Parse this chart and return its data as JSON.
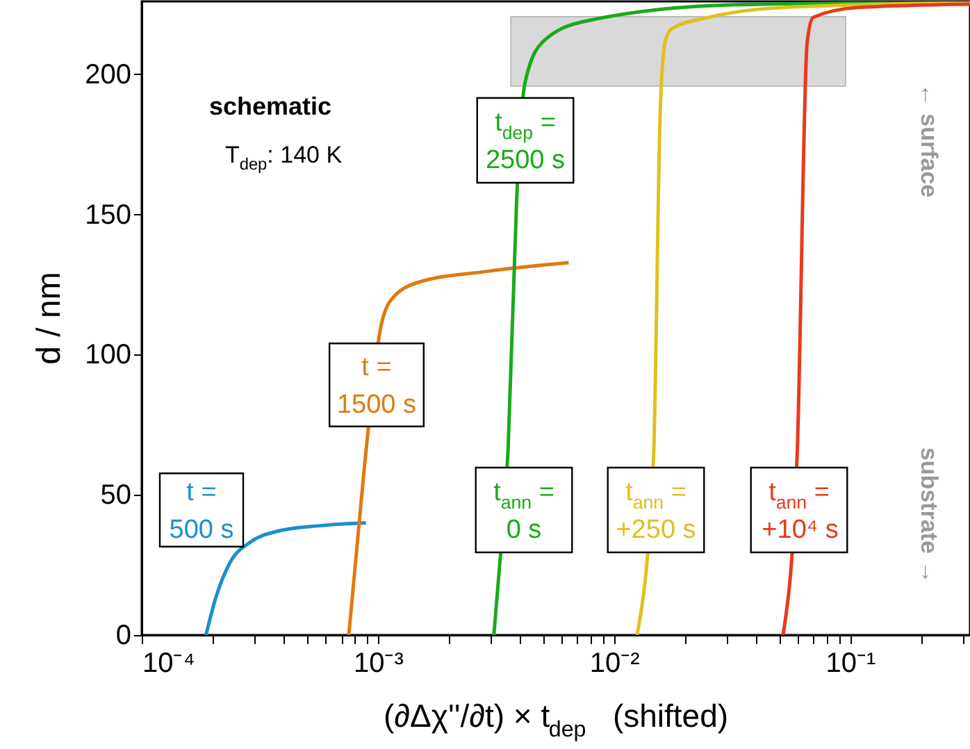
{
  "chart_data": {
    "type": "line",
    "xlabel": "(∂Δχ''/∂t) × t$_{dep}$   (shifted)",
    "ylabel": "d / nm",
    "log": "x",
    "grid": false,
    "marker": "none",
    "line_style": "solid",
    "xlim": [
      0.0001,
      0.322
    ],
    "ylim": [
      0,
      226
    ],
    "xticks": [
      {
        "value": 0.0001,
        "label": "10⁻⁴"
      },
      {
        "value": 0.0002,
        "label": null
      },
      {
        "value": 0.0003,
        "label": null
      },
      {
        "value": 0.0004,
        "label": null
      },
      {
        "value": 0.0005,
        "label": null
      },
      {
        "value": 0.0006,
        "label": null
      },
      {
        "value": 0.0007,
        "label": null
      },
      {
        "value": 0.0008,
        "label": null
      },
      {
        "value": 0.0009,
        "label": null
      },
      {
        "value": 0.001,
        "label": "10⁻³"
      },
      {
        "value": 0.002,
        "label": null
      },
      {
        "value": 0.003,
        "label": null
      },
      {
        "value": 0.004,
        "label": null
      },
      {
        "value": 0.005,
        "label": null
      },
      {
        "value": 0.006,
        "label": null
      },
      {
        "value": 0.007,
        "label": null
      },
      {
        "value": 0.008,
        "label": null
      },
      {
        "value": 0.009,
        "label": null
      },
      {
        "value": 0.01,
        "label": "10⁻²"
      },
      {
        "value": 0.02,
        "label": null
      },
      {
        "value": 0.03,
        "label": null
      },
      {
        "value": 0.04,
        "label": null
      },
      {
        "value": 0.05,
        "label": null
      },
      {
        "value": 0.06,
        "label": null
      },
      {
        "value": 0.07,
        "label": null
      },
      {
        "value": 0.08,
        "label": null
      },
      {
        "value": 0.09,
        "label": null
      },
      {
        "value": 0.1,
        "label": "10⁻¹"
      },
      {
        "value": 0.2,
        "label": null
      },
      {
        "value": 0.3,
        "label": null
      }
    ],
    "yticks": [
      0,
      50,
      100,
      150,
      200
    ],
    "bands": [
      {
        "axis": "x",
        "from": 0.00366,
        "to": 0.0957,
        "color": "#d9d9d9"
      }
    ],
    "series": [
      {
        "color": "#1a8fd0",
        "x": [
          0.000187,
          0.000206,
          0.000236,
          0.000289,
          0.000379,
          0.000569,
          0.00089
        ],
        "values": [
          0,
          13.4,
          25.7,
          33.2,
          37.1,
          39,
          40
        ]
      },
      {
        "color": "#e07a10",
        "x": [
          0.000753,
          0.000877,
          0.00103,
          0.00112,
          0.00147,
          0.00289,
          0.00643
        ],
        "values": [
          0,
          60,
          110,
          118.8,
          125.7,
          129.7,
          132.8
        ]
      },
      {
        "color": "#1aaa1a",
        "x": [
          0.0031,
          0.00328,
          0.00356,
          0.00387,
          0.00419,
          0.00497,
          0.00746,
          0.0331,
          0.322
        ],
        "values": [
          0,
          25,
          66,
          155,
          196.5,
          211.4,
          218.8,
          224.8,
          225.7
        ]
      },
      {
        "color": "#e0c020",
        "x": [
          0.01253,
          0.0147,
          0.0157,
          0.01646,
          0.0176,
          0.0252,
          0.0518,
          0.322
        ],
        "values": [
          0,
          62.9,
          186.6,
          211.4,
          216.3,
          220.3,
          223.8,
          225.5
        ]
      },
      {
        "color": "#e83a1a",
        "x": [
          0.052,
          0.0596,
          0.0658,
          0.0698,
          0.107,
          0.322
        ],
        "values": [
          0,
          62.9,
          211.4,
          220.3,
          223.8,
          225
        ]
      }
    ],
    "annotations": [
      "schematic",
      "T$_{dep}$: 140 K",
      "← surface",
      "substrate →",
      "t =\n500 s",
      "t =\n1500 s",
      "t$_{dep}$ =\n2500 s",
      "t$_{ann}$ =\n0 s",
      "t$_{ann}$ =\n+250 s",
      "t$_{ann}$ =\n+10⁴ s"
    ]
  }
}
